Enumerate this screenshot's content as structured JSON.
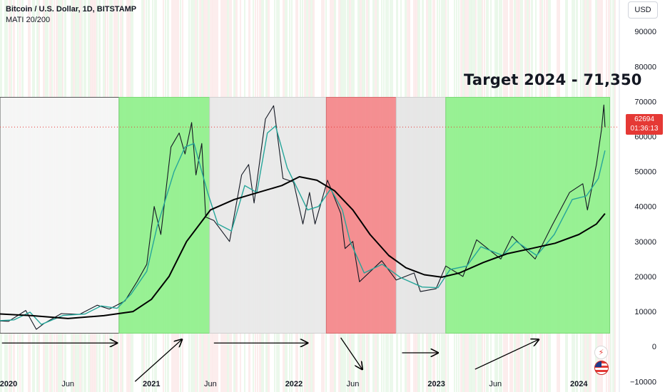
{
  "header": {
    "symbol_line": "Bitcoin / U.S. Dollar, 1D, BITSTAMP",
    "indicator_line": "MATI 20/200"
  },
  "price_scale": {
    "currency": "USD",
    "last_price": "62694",
    "countdown": "01:36:13",
    "last_price_color": "#e53935"
  },
  "icons": {
    "flash": "flash-icon",
    "flag": "us-flag-icon"
  },
  "chart_data": {
    "type": "line",
    "title": "",
    "x_axis": {
      "range": [
        "2019-12-10",
        "2024-04-10"
      ],
      "ticks": [
        {
          "date": "2020-01-01",
          "label": "2020"
        },
        {
          "date": "2020-06-01",
          "label": "Jun"
        },
        {
          "date": "2021-01-01",
          "label": "2021"
        },
        {
          "date": "2021-06-01",
          "label": "Jun"
        },
        {
          "date": "2022-01-01",
          "label": "2022"
        },
        {
          "date": "2022-06-01",
          "label": "Jun"
        },
        {
          "date": "2023-01-01",
          "label": "2023"
        },
        {
          "date": "2023-06-01",
          "label": "Jun"
        },
        {
          "date": "2024-01-01",
          "label": "2024"
        }
      ]
    },
    "y_axis": {
      "range": [
        -13000,
        99000
      ],
      "ticks": [
        90000,
        80000,
        70000,
        60000,
        50000,
        40000,
        30000,
        20000,
        10000,
        0,
        -10000
      ],
      "labels": [
        "90000",
        "80000",
        "70000",
        "60000",
        "50000",
        "40000",
        "30000",
        "20000",
        "10000",
        "0",
        "−10000"
      ]
    },
    "series": [
      {
        "color": "#131722",
        "style": "price",
        "points": [
          [
            "2019-12-10",
            7300
          ],
          [
            "2020-01-01",
            7200
          ],
          [
            "2020-02-14",
            10300
          ],
          [
            "2020-03-12",
            4900
          ],
          [
            "2020-04-01",
            6600
          ],
          [
            "2020-05-15",
            9400
          ],
          [
            "2020-07-01",
            9200
          ],
          [
            "2020-08-15",
            11800
          ],
          [
            "2020-09-15",
            10700
          ],
          [
            "2020-10-25",
            13000
          ],
          [
            "2020-11-25",
            18500
          ],
          [
            "2020-12-20",
            23500
          ],
          [
            "2021-01-08",
            40000
          ],
          [
            "2021-01-25",
            32000
          ],
          [
            "2021-02-20",
            57000
          ],
          [
            "2021-03-13",
            61000
          ],
          [
            "2021-03-28",
            55000
          ],
          [
            "2021-04-14",
            64000
          ],
          [
            "2021-04-25",
            49000
          ],
          [
            "2021-05-10",
            58000
          ],
          [
            "2021-05-20",
            37000
          ],
          [
            "2021-06-10",
            36000
          ],
          [
            "2021-07-20",
            30000
          ],
          [
            "2021-08-20",
            49000
          ],
          [
            "2021-09-07",
            52000
          ],
          [
            "2021-09-21",
            41000
          ],
          [
            "2021-10-20",
            65000
          ],
          [
            "2021-11-10",
            68800
          ],
          [
            "2021-12-04",
            48000
          ],
          [
            "2021-12-31",
            47000
          ],
          [
            "2022-01-24",
            35000
          ],
          [
            "2022-02-10",
            44000
          ],
          [
            "2022-02-24",
            35000
          ],
          [
            "2022-03-28",
            47500
          ],
          [
            "2022-05-01",
            38000
          ],
          [
            "2022-05-12",
            28000
          ],
          [
            "2022-06-01",
            30000
          ],
          [
            "2022-06-18",
            18500
          ],
          [
            "2022-08-14",
            24500
          ],
          [
            "2022-09-20",
            19000
          ],
          [
            "2022-11-05",
            21000
          ],
          [
            "2022-11-21",
            15700
          ],
          [
            "2022-12-31",
            16500
          ],
          [
            "2023-01-25",
            23000
          ],
          [
            "2023-03-10",
            20000
          ],
          [
            "2023-04-14",
            30500
          ],
          [
            "2023-06-15",
            25000
          ],
          [
            "2023-07-14",
            31500
          ],
          [
            "2023-09-11",
            25000
          ],
          [
            "2023-10-24",
            34500
          ],
          [
            "2023-12-08",
            44000
          ],
          [
            "2024-01-11",
            46500
          ],
          [
            "2024-01-23",
            39000
          ],
          [
            "2024-02-15",
            52000
          ],
          [
            "2024-02-28",
            62000
          ],
          [
            "2024-03-05",
            69000
          ],
          [
            "2024-03-08",
            62694
          ]
        ]
      },
      {
        "color": "#26a69a",
        "style": "MA 20",
        "points": [
          [
            "2019-12-10",
            7400
          ],
          [
            "2020-01-15",
            7600
          ],
          [
            "2020-02-25",
            9800
          ],
          [
            "2020-03-25",
            6300
          ],
          [
            "2020-05-20",
            8900
          ],
          [
            "2020-07-15",
            9300
          ],
          [
            "2020-08-25",
            11600
          ],
          [
            "2020-10-05",
            10900
          ],
          [
            "2020-11-10",
            15000
          ],
          [
            "2020-12-20",
            21500
          ],
          [
            "2021-01-15",
            34000
          ],
          [
            "2021-02-28",
            50000
          ],
          [
            "2021-03-28",
            57000
          ],
          [
            "2021-04-20",
            58000
          ],
          [
            "2021-05-25",
            44000
          ],
          [
            "2021-06-20",
            35000
          ],
          [
            "2021-07-25",
            33000
          ],
          [
            "2021-08-28",
            46000
          ],
          [
            "2021-09-28",
            44000
          ],
          [
            "2021-10-25",
            61000
          ],
          [
            "2021-11-15",
            63000
          ],
          [
            "2021-12-15",
            51000
          ],
          [
            "2022-01-10",
            45000
          ],
          [
            "2022-02-05",
            39000
          ],
          [
            "2022-03-05",
            40000
          ],
          [
            "2022-04-05",
            45000
          ],
          [
            "2022-05-05",
            39000
          ],
          [
            "2022-05-25",
            30000
          ],
          [
            "2022-06-30",
            21000
          ],
          [
            "2022-08-15",
            23500
          ],
          [
            "2022-10-01",
            19700
          ],
          [
            "2022-11-25",
            17000
          ],
          [
            "2023-01-05",
            16800
          ],
          [
            "2023-02-05",
            22000
          ],
          [
            "2023-03-20",
            23000
          ],
          [
            "2023-04-25",
            28500
          ],
          [
            "2023-06-20",
            26000
          ],
          [
            "2023-07-25",
            30000
          ],
          [
            "2023-09-15",
            26000
          ],
          [
            "2023-10-30",
            32000
          ],
          [
            "2023-12-15",
            42000
          ],
          [
            "2024-01-20",
            43000
          ],
          [
            "2024-02-20",
            48000
          ],
          [
            "2024-03-08",
            56000
          ]
        ]
      },
      {
        "color": "#000000",
        "style": "MA 200",
        "points": [
          [
            "2019-12-10",
            9300
          ],
          [
            "2020-03-01",
            8800
          ],
          [
            "2020-06-01",
            8000
          ],
          [
            "2020-09-01",
            8800
          ],
          [
            "2020-11-15",
            10000
          ],
          [
            "2021-01-01",
            13500
          ],
          [
            "2021-02-15",
            20000
          ],
          [
            "2021-04-01",
            30000
          ],
          [
            "2021-06-01",
            39000
          ],
          [
            "2021-08-01",
            42000
          ],
          [
            "2021-10-01",
            44000
          ],
          [
            "2021-12-01",
            46000
          ],
          [
            "2022-01-15",
            48500
          ],
          [
            "2022-03-01",
            47500
          ],
          [
            "2022-04-15",
            44500
          ],
          [
            "2022-06-01",
            39000
          ],
          [
            "2022-07-15",
            32000
          ],
          [
            "2022-09-01",
            26000
          ],
          [
            "2022-10-15",
            22500
          ],
          [
            "2022-12-01",
            20500
          ],
          [
            "2023-01-15",
            19800
          ],
          [
            "2023-03-01",
            21000
          ],
          [
            "2023-05-01",
            24000
          ],
          [
            "2023-07-01",
            26500
          ],
          [
            "2023-09-01",
            28000
          ],
          [
            "2023-11-01",
            29500
          ],
          [
            "2024-01-01",
            32000
          ],
          [
            "2024-02-15",
            35000
          ],
          [
            "2024-03-08",
            38000
          ]
        ]
      }
    ],
    "regions": [
      {
        "start": "2019-12-10",
        "end": "2020-10-10",
        "fill": "#f5f5f5",
        "border": "#555555"
      },
      {
        "start": "2020-10-10",
        "end": "2021-05-30",
        "fill": "#92f08e",
        "border": "#7bd877"
      },
      {
        "start": "2021-05-30",
        "end": "2022-03-25",
        "fill": "#e9e9e9",
        "border": "#cfcfcf"
      },
      {
        "start": "2022-03-25",
        "end": "2022-09-20",
        "fill": "#f4898c",
        "border": "#d56b6e"
      },
      {
        "start": "2022-09-20",
        "end": "2023-01-25",
        "fill": "#e6e6e6",
        "border": "#cfcfcf"
      },
      {
        "start": "2023-01-25",
        "end": "2024-03-20",
        "fill": "#92f08e",
        "border": "#7bd877"
      }
    ],
    "arrows": [
      {
        "from": [
          "2019-12-15",
          1000
        ],
        "to": [
          "2020-10-05",
          1000
        ],
        "direction": "right"
      },
      {
        "from": [
          "2020-11-20",
          -10000
        ],
        "to": [
          "2021-03-20",
          2000
        ],
        "direction": "up"
      },
      {
        "from": [
          "2021-06-10",
          1000
        ],
        "to": [
          "2022-02-05",
          1000
        ],
        "direction": "right"
      },
      {
        "from": [
          "2022-05-01",
          2500
        ],
        "to": [
          "2022-06-25",
          -6500
        ],
        "direction": "down"
      },
      {
        "from": [
          "2022-10-05",
          -1800
        ],
        "to": [
          "2023-01-05",
          -1800
        ],
        "direction": "right"
      },
      {
        "from": [
          "2023-04-10",
          -6500
        ],
        "to": [
          "2023-09-20",
          2000
        ],
        "direction": "up"
      }
    ],
    "annotations": [
      {
        "text": "Target 2024 - 71,350"
      }
    ],
    "last_price_line": {
      "value": 62694,
      "style": "dotted"
    },
    "grid": false,
    "legend": "none"
  }
}
